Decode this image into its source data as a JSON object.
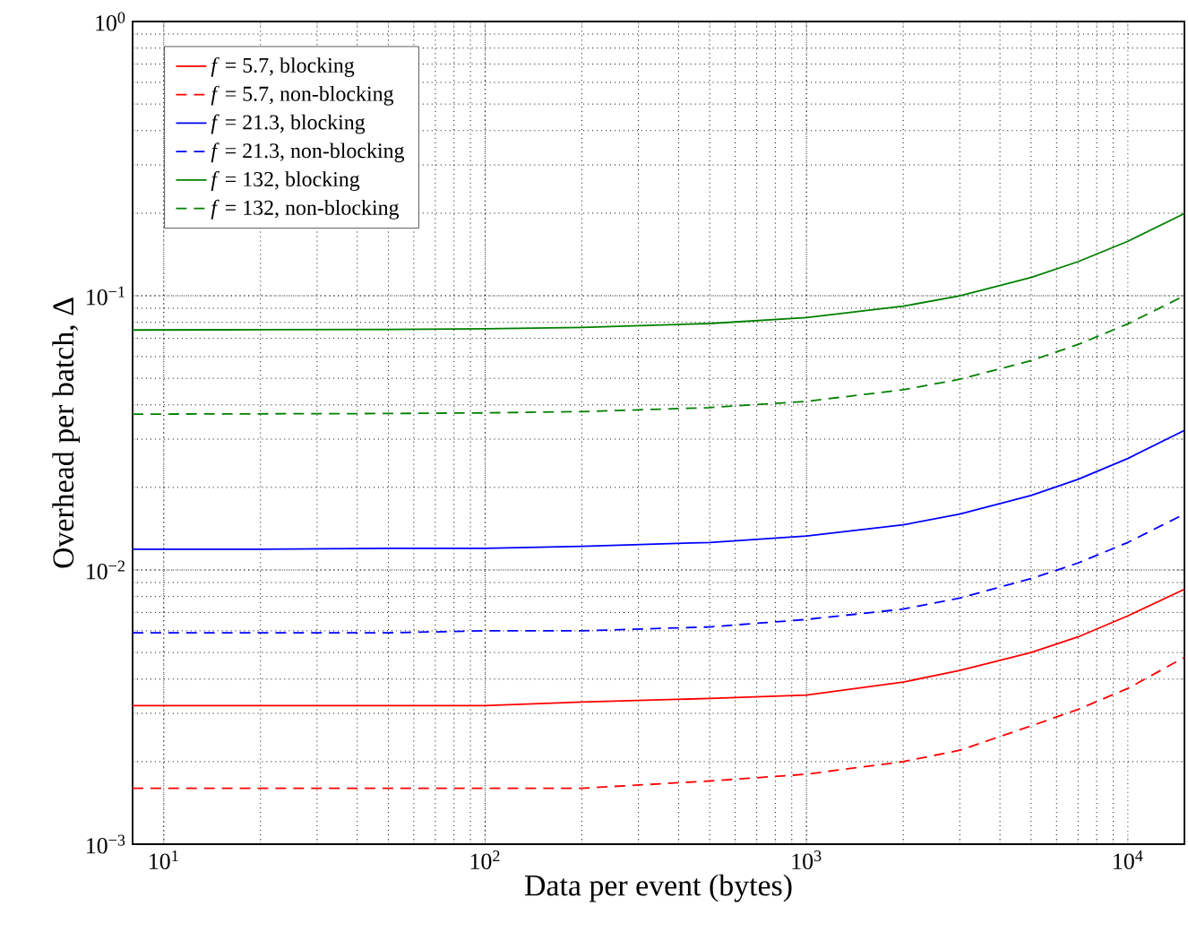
{
  "chart_data": {
    "type": "line",
    "xlabel": "Data per event (bytes)",
    "ylabel": "Overhead per batch, Δ",
    "x": [
      8,
      20,
      50,
      100,
      200,
      500,
      1000,
      2000,
      3000,
      5000,
      7000,
      10000,
      15000
    ],
    "series": [
      {
        "name": "*f* = 5.7, blocking",
        "color": "#ff0000",
        "line_style": "solid",
        "values": [
          0.0032,
          0.0032,
          0.0032,
          0.0032,
          0.0033,
          0.0034,
          0.0035,
          0.0039,
          0.0043,
          0.005,
          0.0057,
          0.0068,
          0.0085
        ]
      },
      {
        "name": "*f* = 5.7, non-blocking",
        "color": "#ff0000",
        "line_style": "dashed",
        "values": [
          0.0016,
          0.0016,
          0.0016,
          0.0016,
          0.0016,
          0.0017,
          0.0018,
          0.002,
          0.0022,
          0.0027,
          0.0031,
          0.0037,
          0.0048
        ]
      },
      {
        "name": "*f* = 21.3, blocking",
        "color": "#0000ff",
        "line_style": "solid",
        "values": [
          0.0119,
          0.0119,
          0.012,
          0.012,
          0.0122,
          0.0126,
          0.0133,
          0.0146,
          0.016,
          0.0187,
          0.0214,
          0.0255,
          0.0323
        ]
      },
      {
        "name": "*f* = 21.3, non-blocking",
        "color": "#0000ff",
        "line_style": "dashed",
        "values": [
          0.0059,
          0.0059,
          0.0059,
          0.006,
          0.006,
          0.0062,
          0.0066,
          0.0072,
          0.0079,
          0.0093,
          0.0106,
          0.0126,
          0.016
        ]
      },
      {
        "name": "*f* = 132, blocking",
        "color": "#008000",
        "line_style": "solid",
        "values": [
          0.075,
          0.0752,
          0.0754,
          0.0758,
          0.0767,
          0.0792,
          0.0833,
          0.0916,
          0.0999,
          0.1165,
          0.1331,
          0.158,
          0.1995
        ]
      },
      {
        "name": "*f* = 132, non-blocking",
        "color": "#008000",
        "line_style": "dashed",
        "values": [
          0.037,
          0.0371,
          0.0372,
          0.0374,
          0.0378,
          0.0391,
          0.0412,
          0.0454,
          0.0496,
          0.058,
          0.0664,
          0.079,
          0.1
        ]
      }
    ],
    "log": "xy",
    "xlim": [
      8,
      15000
    ],
    "ylim": [
      0.001,
      1
    ],
    "xticks": [
      {
        "value": 10,
        "label": "10$^{1}$"
      },
      {
        "value": 100,
        "label": "10$^{2}$"
      },
      {
        "value": 1000,
        "label": "10$^{3}$"
      },
      {
        "value": 10000,
        "label": "10$^{4}$"
      }
    ],
    "yticks": [
      {
        "value": 0.001,
        "label": "10$^{−3}$"
      },
      {
        "value": 0.01,
        "label": "10$^{−2}$"
      },
      {
        "value": 0.1,
        "label": "10$^{−1}$"
      },
      {
        "value": 1,
        "label": "10$^{0}$"
      }
    ],
    "grid": true,
    "legend": "top left",
    "marker": "none"
  }
}
